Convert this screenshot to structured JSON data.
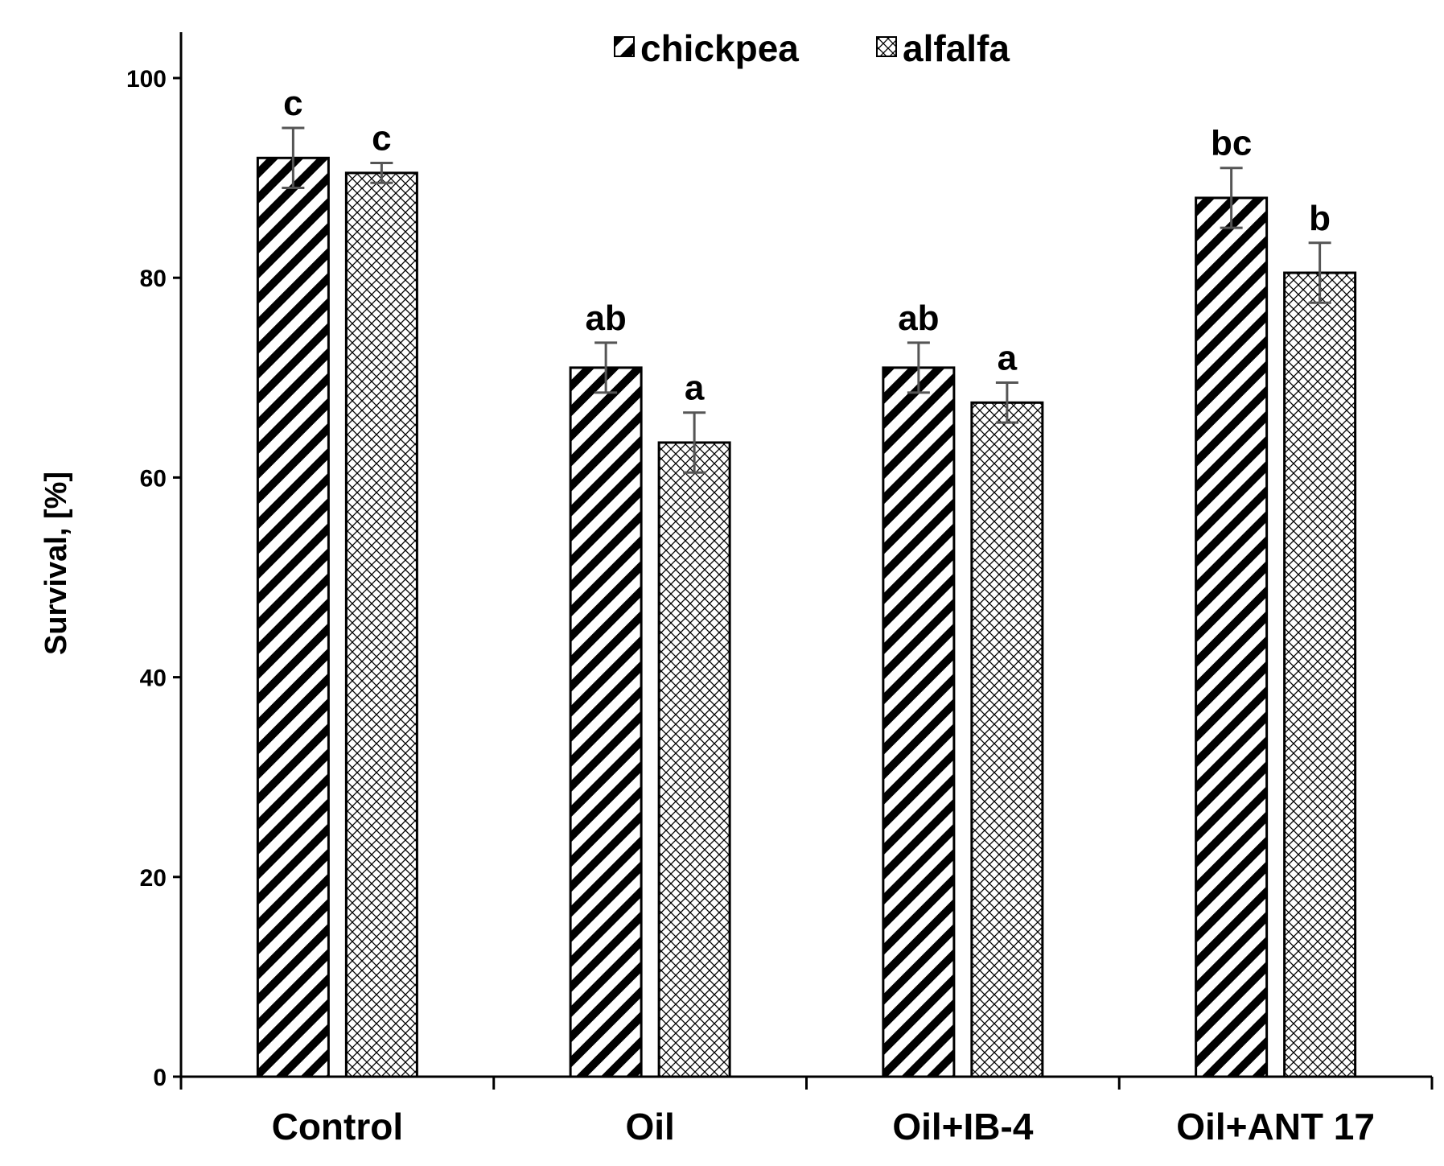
{
  "chart_data": {
    "type": "bar",
    "title": "",
    "xlabel": "",
    "ylabel": "Survival, [%]",
    "ylim": [
      0,
      100
    ],
    "yticks": [
      0,
      20,
      40,
      60,
      80,
      100
    ],
    "ytick_labels": [
      "0",
      "20",
      "40",
      "60",
      "80",
      "100"
    ],
    "categories": [
      "Control",
      "Oil",
      "Oil+IB-4",
      "Oil+ANT 17"
    ],
    "series": [
      {
        "name": "chickpea",
        "pattern": "diagonal-stripes",
        "values": [
          92,
          71,
          71,
          88
        ],
        "errors": [
          3,
          2.5,
          2.5,
          3
        ],
        "labels": [
          "c",
          "ab",
          "ab",
          "bc"
        ]
      },
      {
        "name": "alfalfa",
        "pattern": "crosshatch",
        "values": [
          90.5,
          63.5,
          67.5,
          80.5
        ],
        "errors": [
          1,
          3,
          2,
          3
        ],
        "labels": [
          "c",
          "a",
          "a",
          "b"
        ]
      }
    ],
    "legend": "top-center",
    "grid": false,
    "colors": {
      "bar_stroke": "#000000",
      "fill": "#ffffff",
      "error_bar": "#555555"
    }
  }
}
